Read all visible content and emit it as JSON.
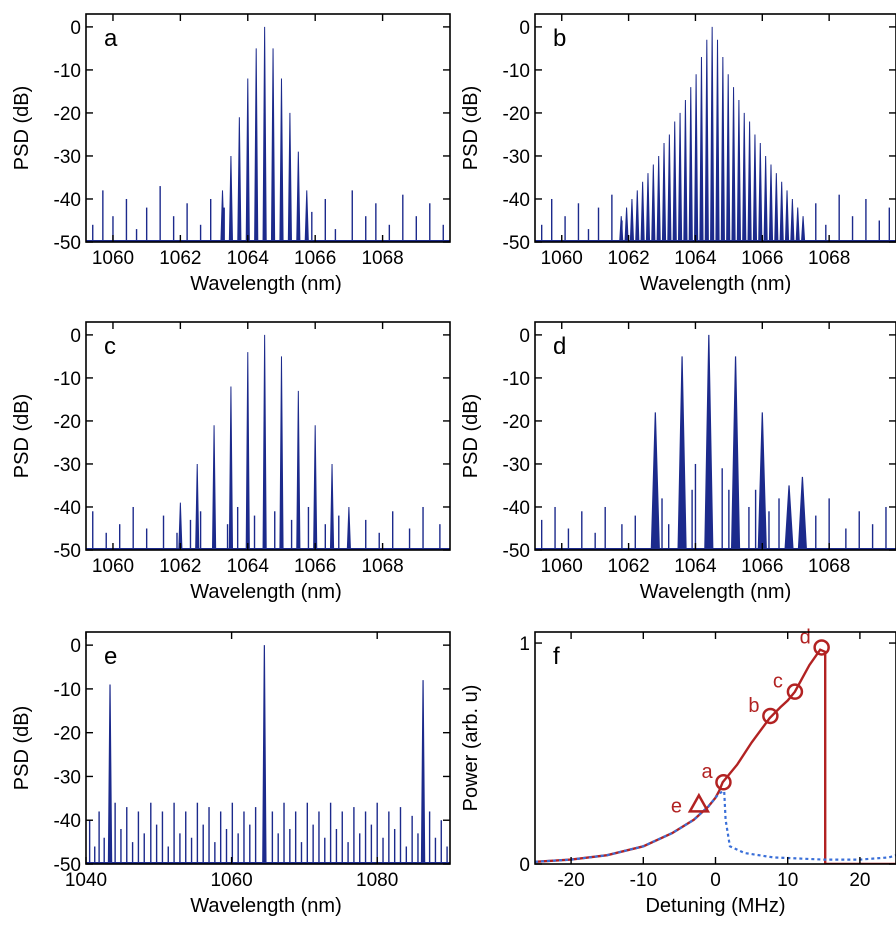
{
  "colors": {
    "spectrum": "#1c2a8c",
    "power_solid": "#b22222",
    "power_dashed": "#3a6fd8",
    "marker": "#b22222"
  },
  "chart_data": [
    {
      "type": "bar",
      "panel": "a",
      "xlabel": "Wavelength (nm)",
      "ylabel": "PSD (dB)",
      "xlim": [
        1059.2,
        1070
      ],
      "ylim": [
        -50,
        3
      ],
      "xticks": [
        1060,
        1062,
        1064,
        1066,
        1068
      ],
      "yticks": [
        0,
        -10,
        -20,
        -30,
        -40,
        -50
      ],
      "grid": false,
      "comb": {
        "center": 1064.5,
        "spacing": 0.25,
        "peaks": [
          -38,
          -30,
          -21,
          -12,
          -5,
          0,
          -5,
          -12,
          -20,
          -29,
          -38
        ]
      },
      "noise": {
        "floor": -50,
        "spikes": [
          [
            1059.4,
            -46
          ],
          [
            1059.7,
            -38
          ],
          [
            1060.0,
            -44
          ],
          [
            1060.4,
            -40
          ],
          [
            1060.7,
            -47
          ],
          [
            1061.0,
            -42
          ],
          [
            1061.4,
            -37
          ],
          [
            1061.8,
            -44
          ],
          [
            1062.2,
            -41
          ],
          [
            1062.6,
            -46
          ],
          [
            1062.9,
            -40
          ],
          [
            1063.3,
            -42
          ],
          [
            1065.9,
            -43
          ],
          [
            1066.3,
            -40
          ],
          [
            1066.6,
            -47
          ],
          [
            1067.1,
            -38
          ],
          [
            1067.5,
            -44
          ],
          [
            1067.8,
            -41
          ],
          [
            1068.2,
            -46
          ],
          [
            1068.6,
            -39
          ],
          [
            1069.0,
            -44
          ],
          [
            1069.4,
            -41
          ],
          [
            1069.8,
            -46
          ]
        ]
      }
    },
    {
      "type": "bar",
      "panel": "b",
      "xlabel": "Wavelength (nm)",
      "ylabel": "PSD (dB)",
      "xlim": [
        1059.2,
        1070
      ],
      "ylim": [
        -50,
        3
      ],
      "xticks": [
        1060,
        1062,
        1064,
        1066,
        1068
      ],
      "yticks": [
        0,
        -10,
        -20,
        -30,
        -40,
        -50
      ],
      "grid": false,
      "comb": {
        "center": 1064.5,
        "spacing": 0.16,
        "peaks": [
          -44,
          -42,
          -40,
          -38,
          -36,
          -34,
          -32,
          -30,
          -27,
          -25,
          -22,
          -20,
          -17,
          -14,
          -11,
          -7,
          -3,
          0,
          -3,
          -7,
          -11,
          -14,
          -17,
          -20,
          -22,
          -25,
          -27,
          -30,
          -32,
          -34,
          -36,
          -38,
          -40,
          -42,
          -44
        ]
      },
      "noise": {
        "floor": -50,
        "spikes": [
          [
            1059.4,
            -46
          ],
          [
            1059.7,
            -40
          ],
          [
            1060.1,
            -44
          ],
          [
            1060.5,
            -41
          ],
          [
            1060.8,
            -47
          ],
          [
            1061.1,
            -42
          ],
          [
            1061.5,
            -39
          ],
          [
            1061.8,
            -45
          ],
          [
            1067.6,
            -41
          ],
          [
            1067.9,
            -46
          ],
          [
            1068.3,
            -39
          ],
          [
            1068.7,
            -44
          ],
          [
            1069.1,
            -40
          ],
          [
            1069.5,
            -45
          ],
          [
            1069.8,
            -42
          ]
        ]
      }
    },
    {
      "type": "bar",
      "panel": "c",
      "xlabel": "Wavelength (nm)",
      "ylabel": "PSD (dB)",
      "xlim": [
        1059.2,
        1070
      ],
      "ylim": [
        -50,
        3
      ],
      "xticks": [
        1060,
        1062,
        1064,
        1066,
        1068
      ],
      "yticks": [
        0,
        -10,
        -20,
        -30,
        -40,
        -50
      ],
      "grid": false,
      "comb": {
        "center": 1064.5,
        "spacing": 0.5,
        "peaks": [
          -39,
          -30,
          -21,
          -12,
          -4,
          0,
          -5,
          -13,
          -21,
          -30,
          -40
        ]
      },
      "noise": {
        "floor": -50,
        "spikes": [
          [
            1059.4,
            -41
          ],
          [
            1059.8,
            -46
          ],
          [
            1060.2,
            -44
          ],
          [
            1060.6,
            -40
          ],
          [
            1061.0,
            -45
          ],
          [
            1061.5,
            -42
          ],
          [
            1061.9,
            -46
          ],
          [
            1062.3,
            -43
          ],
          [
            1062.6,
            -41
          ],
          [
            1063.4,
            -44
          ],
          [
            1063.7,
            -40
          ],
          [
            1064.2,
            -42
          ],
          [
            1064.8,
            -41
          ],
          [
            1065.3,
            -43
          ],
          [
            1065.8,
            -40
          ],
          [
            1066.3,
            -44
          ],
          [
            1066.7,
            -42
          ],
          [
            1067.5,
            -43
          ],
          [
            1067.9,
            -46
          ],
          [
            1068.3,
            -41
          ],
          [
            1068.8,
            -45
          ],
          [
            1069.2,
            -40
          ],
          [
            1069.7,
            -44
          ]
        ]
      }
    },
    {
      "type": "bar",
      "panel": "d",
      "xlabel": "Wavelength (nm)",
      "ylabel": "PSD (dB)",
      "xlim": [
        1059.2,
        1070
      ],
      "ylim": [
        -50,
        3
      ],
      "xticks": [
        1060,
        1062,
        1064,
        1066,
        1068
      ],
      "yticks": [
        0,
        -10,
        -20,
        -30,
        -40,
        -50
      ],
      "grid": false,
      "peaks": [
        [
          1062.8,
          -18
        ],
        [
          1063.6,
          -5
        ],
        [
          1064.4,
          0
        ],
        [
          1065.2,
          -5
        ],
        [
          1066.0,
          -18
        ],
        [
          1066.8,
          -35
        ],
        [
          1067.2,
          -33
        ]
      ],
      "noise": {
        "floor": -50,
        "spikes": [
          [
            1059.4,
            -43
          ],
          [
            1059.8,
            -40
          ],
          [
            1060.2,
            -45
          ],
          [
            1060.6,
            -41
          ],
          [
            1061.0,
            -46
          ],
          [
            1061.3,
            -40
          ],
          [
            1061.8,
            -44
          ],
          [
            1062.2,
            -42
          ],
          [
            1063.0,
            -38
          ],
          [
            1063.2,
            -44
          ],
          [
            1063.9,
            -36
          ],
          [
            1064.0,
            -30
          ],
          [
            1064.8,
            -31
          ],
          [
            1065.0,
            -36
          ],
          [
            1065.6,
            -40
          ],
          [
            1065.8,
            -36
          ],
          [
            1066.2,
            -41
          ],
          [
            1066.5,
            -38
          ],
          [
            1067.6,
            -42
          ],
          [
            1068.0,
            -38
          ],
          [
            1068.5,
            -45
          ],
          [
            1068.9,
            -41
          ],
          [
            1069.3,
            -44
          ],
          [
            1069.7,
            -40
          ]
        ]
      }
    },
    {
      "type": "bar",
      "panel": "e",
      "xlabel": "Wavelength (nm)",
      "ylabel": "PSD (dB)",
      "xlim": [
        1040,
        1090
      ],
      "ylim": [
        -50,
        3
      ],
      "xticks": [
        1040,
        1060,
        1080
      ],
      "yticks": [
        0,
        -10,
        -20,
        -30,
        -40,
        -50
      ],
      "grid": false,
      "peaks": [
        [
          1043.3,
          -9
        ],
        [
          1064.5,
          0
        ],
        [
          1086.3,
          -8
        ]
      ],
      "noise": {
        "floor": -50,
        "spikes": [
          [
            1040.5,
            -40
          ],
          [
            1041.2,
            -46
          ],
          [
            1041.8,
            -38
          ],
          [
            1042.5,
            -44
          ],
          [
            1044.0,
            -36
          ],
          [
            1044.8,
            -42
          ],
          [
            1045.6,
            -37
          ],
          [
            1046.4,
            -45
          ],
          [
            1047.2,
            -38
          ],
          [
            1048.0,
            -43
          ],
          [
            1048.9,
            -36
          ],
          [
            1049.7,
            -41
          ],
          [
            1050.5,
            -38
          ],
          [
            1051.3,
            -46
          ],
          [
            1052.1,
            -36
          ],
          [
            1052.9,
            -43
          ],
          [
            1053.7,
            -38
          ],
          [
            1054.5,
            -44
          ],
          [
            1055.3,
            -36
          ],
          [
            1056.1,
            -41
          ],
          [
            1056.9,
            -37
          ],
          [
            1057.7,
            -45
          ],
          [
            1058.5,
            -38
          ],
          [
            1059.3,
            -42
          ],
          [
            1060.1,
            -36
          ],
          [
            1060.9,
            -43
          ],
          [
            1061.7,
            -38
          ],
          [
            1062.5,
            -41
          ],
          [
            1063.3,
            -37
          ],
          [
            1065.6,
            -38
          ],
          [
            1066.4,
            -43
          ],
          [
            1067.2,
            -36
          ],
          [
            1068.0,
            -42
          ],
          [
            1068.8,
            -38
          ],
          [
            1069.6,
            -45
          ],
          [
            1070.4,
            -36
          ],
          [
            1071.2,
            -41
          ],
          [
            1072.0,
            -38
          ],
          [
            1072.8,
            -44
          ],
          [
            1073.6,
            -36
          ],
          [
            1074.4,
            -42
          ],
          [
            1075.2,
            -38
          ],
          [
            1076.0,
            -45
          ],
          [
            1076.8,
            -37
          ],
          [
            1077.6,
            -43
          ],
          [
            1078.4,
            -38
          ],
          [
            1079.2,
            -41
          ],
          [
            1080.0,
            -36
          ],
          [
            1080.8,
            -44
          ],
          [
            1081.6,
            -38
          ],
          [
            1082.4,
            -42
          ],
          [
            1083.2,
            -37
          ],
          [
            1084.0,
            -46
          ],
          [
            1084.8,
            -39
          ],
          [
            1085.6,
            -43
          ],
          [
            1087.2,
            -38
          ],
          [
            1088.0,
            -44
          ],
          [
            1088.8,
            -40
          ],
          [
            1089.6,
            -46
          ]
        ]
      }
    },
    {
      "type": "line",
      "panel": "f",
      "xlabel": "Detuning (MHz)",
      "ylabel": "Power (arb. u)",
      "xlim": [
        -25,
        25
      ],
      "ylim": [
        0,
        1.05
      ],
      "xticks": [
        -20,
        -10,
        0,
        10,
        20
      ],
      "yticks": [
        0,
        1
      ],
      "grid": false,
      "series": [
        {
          "style": "solid",
          "x": [
            -25,
            -20,
            -15,
            -10,
            -6,
            -3,
            -1,
            0,
            0.5,
            1,
            3,
            5,
            7.5,
            9,
            10,
            11,
            12,
            13,
            14.5,
            15.2,
            15.2,
            15.5,
            25
          ],
          "y": [
            0.01,
            0.02,
            0.04,
            0.08,
            0.14,
            0.2,
            0.26,
            0.3,
            0.33,
            0.37,
            0.45,
            0.55,
            0.66,
            0.71,
            0.74,
            0.78,
            0.84,
            0.9,
            0.97,
            0.96,
            0.0,
            0.0,
            0.0
          ]
        },
        {
          "style": "dashed",
          "x": [
            -25,
            -20,
            -15,
            -10,
            -6,
            -3,
            -1,
            0.5,
            1.2,
            1.4,
            2,
            4,
            8,
            15,
            20,
            24,
            25
          ],
          "y": [
            0.01,
            0.02,
            0.04,
            0.08,
            0.14,
            0.2,
            0.26,
            0.32,
            0.33,
            0.2,
            0.08,
            0.05,
            0.03,
            0.02,
            0.02,
            0.03,
            0.04
          ]
        }
      ],
      "markers": [
        {
          "label": "a",
          "shape": "circle",
          "x": 1.1,
          "y": 0.37
        },
        {
          "label": "b",
          "shape": "circle",
          "x": 7.6,
          "y": 0.67
        },
        {
          "label": "c",
          "shape": "circle",
          "x": 11.0,
          "y": 0.78
        },
        {
          "label": "d",
          "shape": "circle",
          "x": 14.7,
          "y": 0.98
        },
        {
          "label": "e",
          "shape": "triangle",
          "x": -2.3,
          "y": 0.27
        }
      ]
    }
  ]
}
